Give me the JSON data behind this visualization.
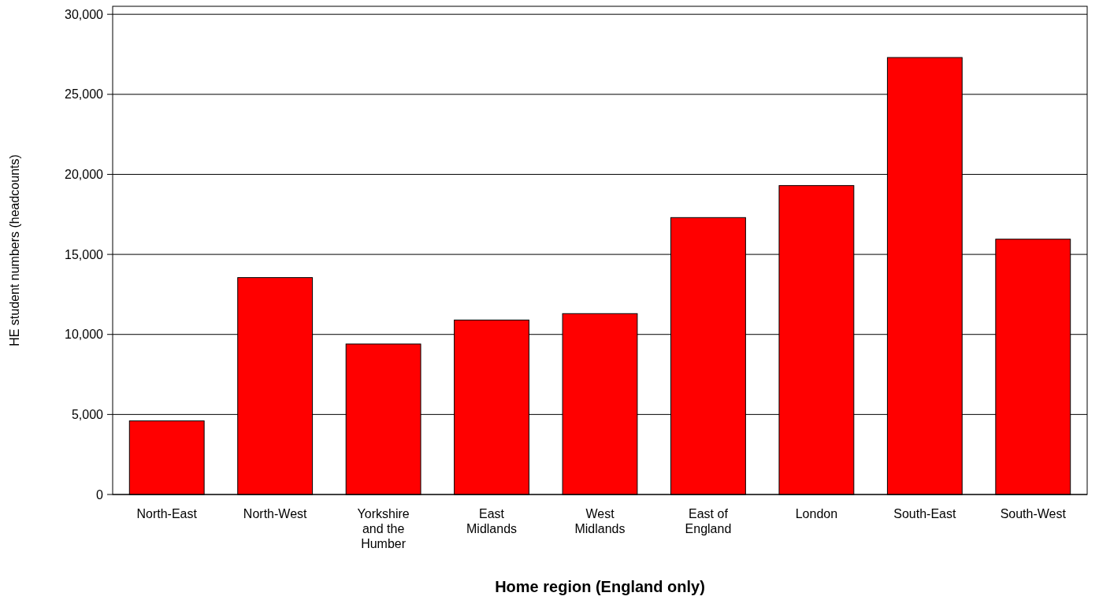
{
  "chart_data": {
    "type": "bar",
    "xlabel": "Home region (England only)",
    "ylabel": "HE student numbers (headcounts)",
    "categories": [
      "North-East",
      "North-West",
      "Yorkshire and the Humber",
      "East Midlands",
      "West Midlands",
      "East of England",
      "London",
      "South-East",
      "South-West"
    ],
    "values": [
      4600,
      13550,
      9400,
      10900,
      11300,
      17300,
      19300,
      27300,
      15950
    ],
    "color": "#ff0000",
    "ylim": [
      0,
      30500
    ],
    "yticks": [
      0,
      {
        "value": 5000,
        "label": "5,000"
      },
      {
        "value": 10000,
        "label": "10,000"
      },
      {
        "value": 15000,
        "label": "15,000"
      },
      {
        "value": 20000,
        "label": "20,000"
      },
      {
        "value": 25000,
        "label": "25,000"
      },
      {
        "value": 30000,
        "label": "30,000"
      }
    ],
    "grid": "y"
  }
}
